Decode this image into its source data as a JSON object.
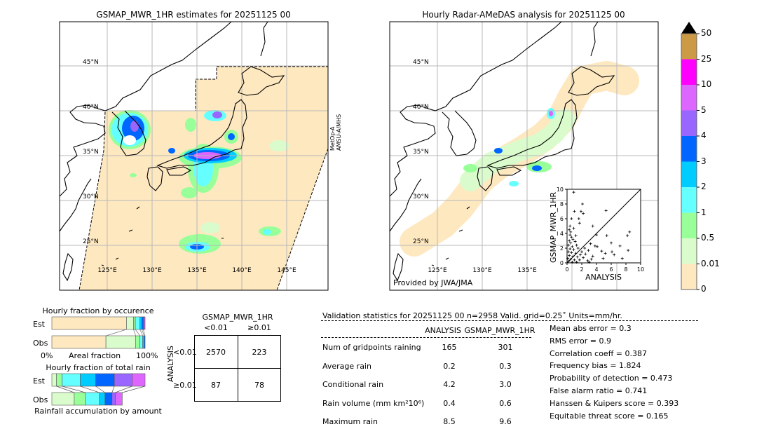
{
  "left_map": {
    "title": "GSMAP_MWR_1HR estimates for 20251125 00",
    "side_label_line1": "MetOp-A",
    "side_label_line2": "AMSU-A/MHS",
    "lat_labels": [
      "45°N",
      "40°N",
      "35°N",
      "30°N",
      "25°N"
    ],
    "lon_labels": [
      "125°E",
      "130°E",
      "135°E",
      "140°E",
      "145°E"
    ]
  },
  "right_map": {
    "title": "Hourly Radar-AMeDAS analysis for 20251125 00",
    "credit": "Provided by JWA/JMA",
    "lat_labels": [
      "45°N",
      "40°N",
      "35°N",
      "30°N",
      "25°N"
    ],
    "lon_labels": [
      "125°E",
      "130°E",
      "135°E"
    ]
  },
  "colorbar": {
    "ticks": [
      "0",
      "0.01",
      "0.5",
      "1",
      "2",
      "3",
      "4",
      "5",
      "10",
      "25",
      "50"
    ],
    "colors": [
      "#fee8c0",
      "#dafccc",
      "#99ff99",
      "#66ffff",
      "#00ccff",
      "#0066ff",
      "#9966ff",
      "#dd66ff",
      "#ff00ff",
      "#cc9944"
    ],
    "extend_color": "#000000"
  },
  "chart_data": {
    "type": "scatter",
    "xlabel": "ANALYSIS",
    "ylabel": "GSMAP_MWR_1HR",
    "xlim": [
      0,
      10
    ],
    "ylim": [
      0,
      10
    ],
    "xticks": [
      "0",
      "2",
      "4",
      "6",
      "8",
      "10"
    ],
    "yticks": [
      "0",
      "2",
      "4",
      "6",
      "8",
      "10"
    ],
    "diagonal": true,
    "points": [
      [
        0.9,
        9.6
      ],
      [
        2.1,
        8.0
      ],
      [
        1.0,
        7.0
      ],
      [
        1.9,
        7.0
      ],
      [
        2.2,
        6.7
      ],
      [
        5.3,
        7.1
      ],
      [
        0.6,
        6.0
      ],
      [
        1.6,
        6.0
      ],
      [
        3.5,
        5.0
      ],
      [
        1.7,
        5.4
      ],
      [
        8.5,
        4.2
      ],
      [
        8.2,
        3.7
      ],
      [
        5.4,
        3.7
      ],
      [
        4.0,
        3.8
      ],
      [
        6.0,
        2.7
      ],
      [
        7.2,
        2.3
      ],
      [
        3.8,
        2.3
      ],
      [
        4.1,
        2.2
      ],
      [
        3.2,
        2.6
      ],
      [
        4.7,
        1.6
      ],
      [
        6.1,
        1.5
      ],
      [
        8.3,
        1.7
      ],
      [
        6.4,
        1.1
      ],
      [
        5.2,
        1.3
      ],
      [
        4.9,
        0.6
      ],
      [
        7.5,
        0.6
      ],
      [
        3.5,
        0.9
      ],
      [
        2.5,
        1.2
      ],
      [
        2.0,
        1.5
      ],
      [
        0.3,
        4.5
      ],
      [
        0.5,
        4.2
      ],
      [
        0.4,
        3.8
      ],
      [
        0.6,
        3.5
      ],
      [
        0.3,
        3.0
      ],
      [
        0.8,
        3.2
      ],
      [
        0.5,
        2.7
      ],
      [
        1.1,
        2.9
      ],
      [
        0.2,
        2.4
      ],
      [
        0.7,
        2.2
      ],
      [
        1.3,
        2.4
      ],
      [
        0.4,
        1.9
      ],
      [
        0.9,
        1.8
      ],
      [
        1.5,
        2.0
      ],
      [
        0.2,
        1.5
      ],
      [
        0.6,
        1.4
      ],
      [
        1.2,
        1.3
      ],
      [
        1.8,
        1.1
      ],
      [
        0.3,
        1.0
      ],
      [
        0.8,
        0.9
      ],
      [
        1.4,
        0.8
      ],
      [
        2.2,
        0.7
      ],
      [
        0.1,
        0.6
      ],
      [
        0.5,
        0.5
      ],
      [
        1.0,
        0.4
      ],
      [
        1.7,
        0.4
      ],
      [
        2.8,
        0.3
      ],
      [
        0.2,
        0.2
      ],
      [
        0.7,
        0.1
      ],
      [
        1.3,
        0.1
      ],
      [
        3.0,
        0.1
      ],
      [
        0.4,
        5.0
      ],
      [
        0.9,
        4.7
      ],
      [
        1.2,
        3.7
      ],
      [
        2.4,
        2.0
      ],
      [
        2.9,
        1.7
      ],
      [
        3.3,
        0.5
      ]
    ]
  },
  "occurrence": {
    "title": "Hourly fraction by occurence",
    "row_est": "Est",
    "row_obs": "Obs",
    "xlabel_left": "0%",
    "xlabel_mid": "Areal fraction",
    "xlabel_right": "100%",
    "est_fractions": [
      0.8,
      0.075,
      0.02,
      0.05,
      0.02,
      0.015,
      0.01,
      0.01
    ],
    "obs_fractions": [
      0.58,
      0.32,
      0.045,
      0.03,
      0.015,
      0.01
    ]
  },
  "total_rain": {
    "title": "Hourly fraction of total rain",
    "row_est": "Est",
    "row_obs": "Obs",
    "xlabel": "Rainfall accumulation by amount",
    "est_fractions": [
      0.05,
      0.06,
      0.195,
      0.165,
      0.2,
      0.19,
      0.14
    ],
    "obs_fractions": [
      0.24,
      0.12,
      0.15,
      0.06,
      0.075,
      0.035,
      0.075
    ]
  },
  "contingency": {
    "title": "GSMAP_MWR_1HR",
    "col_lt": "<0.01",
    "col_ge": "≥0.01",
    "row_axis": "ANALYSIS",
    "row_lt": "<0.01",
    "row_ge": "≥0.01",
    "cells": [
      [
        "2570",
        "223"
      ],
      [
        "87",
        "78"
      ]
    ]
  },
  "validation": {
    "header": "Validation statistics for 20251125 00  n=2958 Valid. grid=0.25˚ Units=mm/hr.",
    "col_analysis": "ANALYSIS",
    "col_gsmap": "GSMAP_MWR_1HR",
    "rows": [
      {
        "label": "Num of gridpoints raining",
        "analysis": "165",
        "gsmap": "301"
      },
      {
        "label": "Average rain",
        "analysis": "0.2",
        "gsmap": "0.3"
      },
      {
        "label": "Conditional rain",
        "analysis": "4.2",
        "gsmap": "3.0"
      },
      {
        "label": "Rain volume (mm km²10⁶)",
        "analysis": "0.4",
        "gsmap": "0.6"
      },
      {
        "label": "Maximum rain",
        "analysis": "8.5",
        "gsmap": "9.6"
      }
    ],
    "scores": [
      "Mean abs error =    0.3",
      "RMS error =    0.9",
      "Correlation coeff =  0.387",
      "Frequency bias =  1.824",
      "Probability of detection =  0.473",
      "False alarm ratio =  0.741",
      "Hanssen & Kuipers score =  0.393",
      "Equitable threat score =  0.165"
    ]
  }
}
